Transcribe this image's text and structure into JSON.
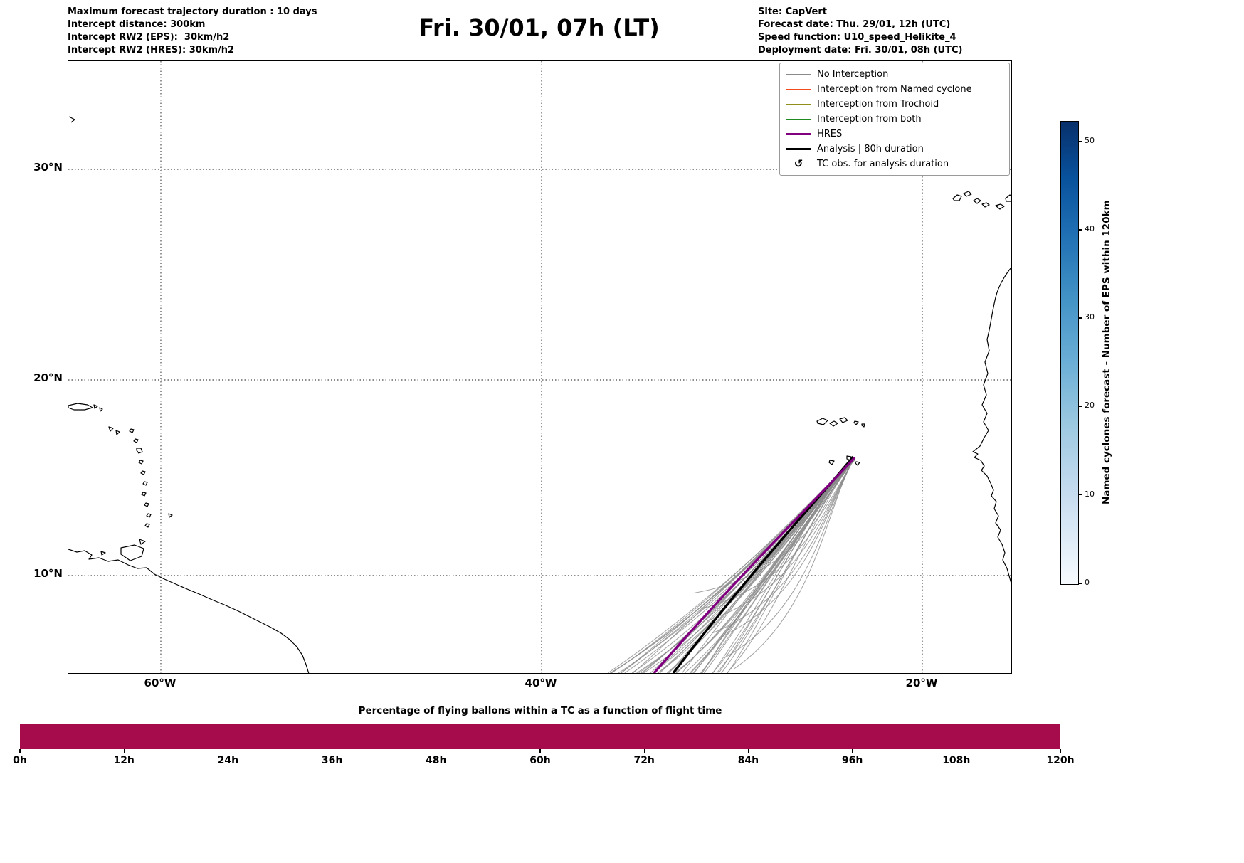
{
  "header": {
    "left_lines": [
      "Maximum forecast trajectory duration : 10 days",
      "Intercept distance: 300km",
      "Intercept RW2 (EPS):  30km/h2",
      "Intercept RW2 (HRES): 30km/h2"
    ],
    "title": "Fri. 30/01, 07h (LT)",
    "right_lines": [
      "Site: CapVert",
      "Forecast date: Thu. 29/01, 12h (UTC)",
      "Speed function: U10_speed_Helikite_4",
      "Deployment date: Fri. 30/01, 08h (UTC)"
    ]
  },
  "map": {
    "lat_ticks": [
      "30°N",
      "20°N",
      "10°N"
    ],
    "lon_ticks": [
      "60°W",
      "40°W",
      "20°W"
    ],
    "legend": [
      {
        "label": "No Interception",
        "color": "#8a8a8a",
        "lw": 1.5,
        "icon": "gray-line-icon"
      },
      {
        "label": "Interception from Named cyclone",
        "color": "#f5491f",
        "lw": 1.5,
        "icon": "orangered-line-icon"
      },
      {
        "label": "Interception from Trochoid",
        "color": "#8f8f1a",
        "lw": 1.5,
        "icon": "olive-line-icon"
      },
      {
        "label": "Interception from both",
        "color": "#1f8a1f",
        "lw": 1.5,
        "icon": "green-line-icon"
      },
      {
        "label": "HRES",
        "color": "#800080",
        "lw": 3.5,
        "icon": "purple-line-icon"
      },
      {
        "label": "Analysis | 80h duration",
        "color": "#000000",
        "lw": 3.5,
        "icon": "black-line-icon"
      },
      {
        "label": "TC obs. for analysis duration",
        "symbol": "↺",
        "icon": "tc-obs-symbol-icon"
      }
    ]
  },
  "colorbar": {
    "label": "Named cyclones forecast - Number of EPS within 120km",
    "ticks": [
      0,
      10,
      20,
      30,
      40,
      50
    ],
    "vmin": 0,
    "vmax": 52,
    "colormap": "Blues"
  },
  "bottom_chart": {
    "title": "Percentage of flying ballons within a TC as a function of flight time",
    "x_ticks": [
      "0h",
      "12h",
      "24h",
      "36h",
      "48h",
      "60h",
      "72h",
      "84h",
      "96h",
      "108h",
      "120h"
    ],
    "bar_color": "#a60c4b"
  },
  "chart_data": [
    {
      "type": "line",
      "title": "Fri. 30/01, 07h (LT)",
      "description": "Balloon forecast trajectories over the tropical Atlantic launched from Cap Vert",
      "x_ticks_lon": [
        "60°W",
        "40°W",
        "20°W"
      ],
      "y_ticks_lat": [
        "30°N",
        "20°N",
        "10°N"
      ],
      "xlim_lon_deg_west": [
        64.9,
        15.3
      ],
      "ylim_lat_deg_north": [
        5.0,
        35.5
      ],
      "grid": "dotted",
      "legend_position": "upper right",
      "series": [
        {
          "name": "EPS ensemble trajectories (No Interception)",
          "count": 50,
          "origin_lonlat": [
            -23.6,
            15.8
          ],
          "endpoint_lon_range_at_5N": [
            -36.6,
            -30.5
          ]
        },
        {
          "name": "HRES",
          "points_lonlat": [
            [
              -23.6,
              15.8
            ],
            [
              -26.5,
              12.5
            ],
            [
              -29.5,
              9.5
            ],
            [
              -32.0,
              7.0
            ],
            [
              -34.1,
              5.0
            ]
          ]
        },
        {
          "name": "Analysis | 80h duration",
          "points_lonlat": [
            [
              -23.6,
              15.8
            ],
            [
              -26.0,
              12.8
            ],
            [
              -28.8,
              10.0
            ],
            [
              -31.0,
              7.5
            ],
            [
              -33.1,
              5.0
            ]
          ]
        }
      ]
    },
    {
      "type": "bar",
      "title": "Percentage of flying ballons within a TC as a function of flight time",
      "categories": [
        "0h",
        "12h",
        "24h",
        "36h",
        "48h",
        "60h",
        "72h",
        "84h",
        "96h",
        "108h",
        "120h"
      ],
      "values": [
        0,
        0,
        0,
        0,
        0,
        0,
        0,
        0,
        0,
        0,
        0
      ],
      "note": "rendered as a uniform full-height crimson strip across all flight times (constant level; all trajectories are No Interception)",
      "bar_color": "#a60c4b"
    },
    {
      "type": "heatmap",
      "role": "colorbar",
      "label": "Named cyclones forecast - Number of EPS within 120km",
      "ticks": [
        0,
        10,
        20,
        30,
        40,
        50
      ],
      "range": [
        0,
        52
      ],
      "colormap": "Blues"
    }
  ]
}
